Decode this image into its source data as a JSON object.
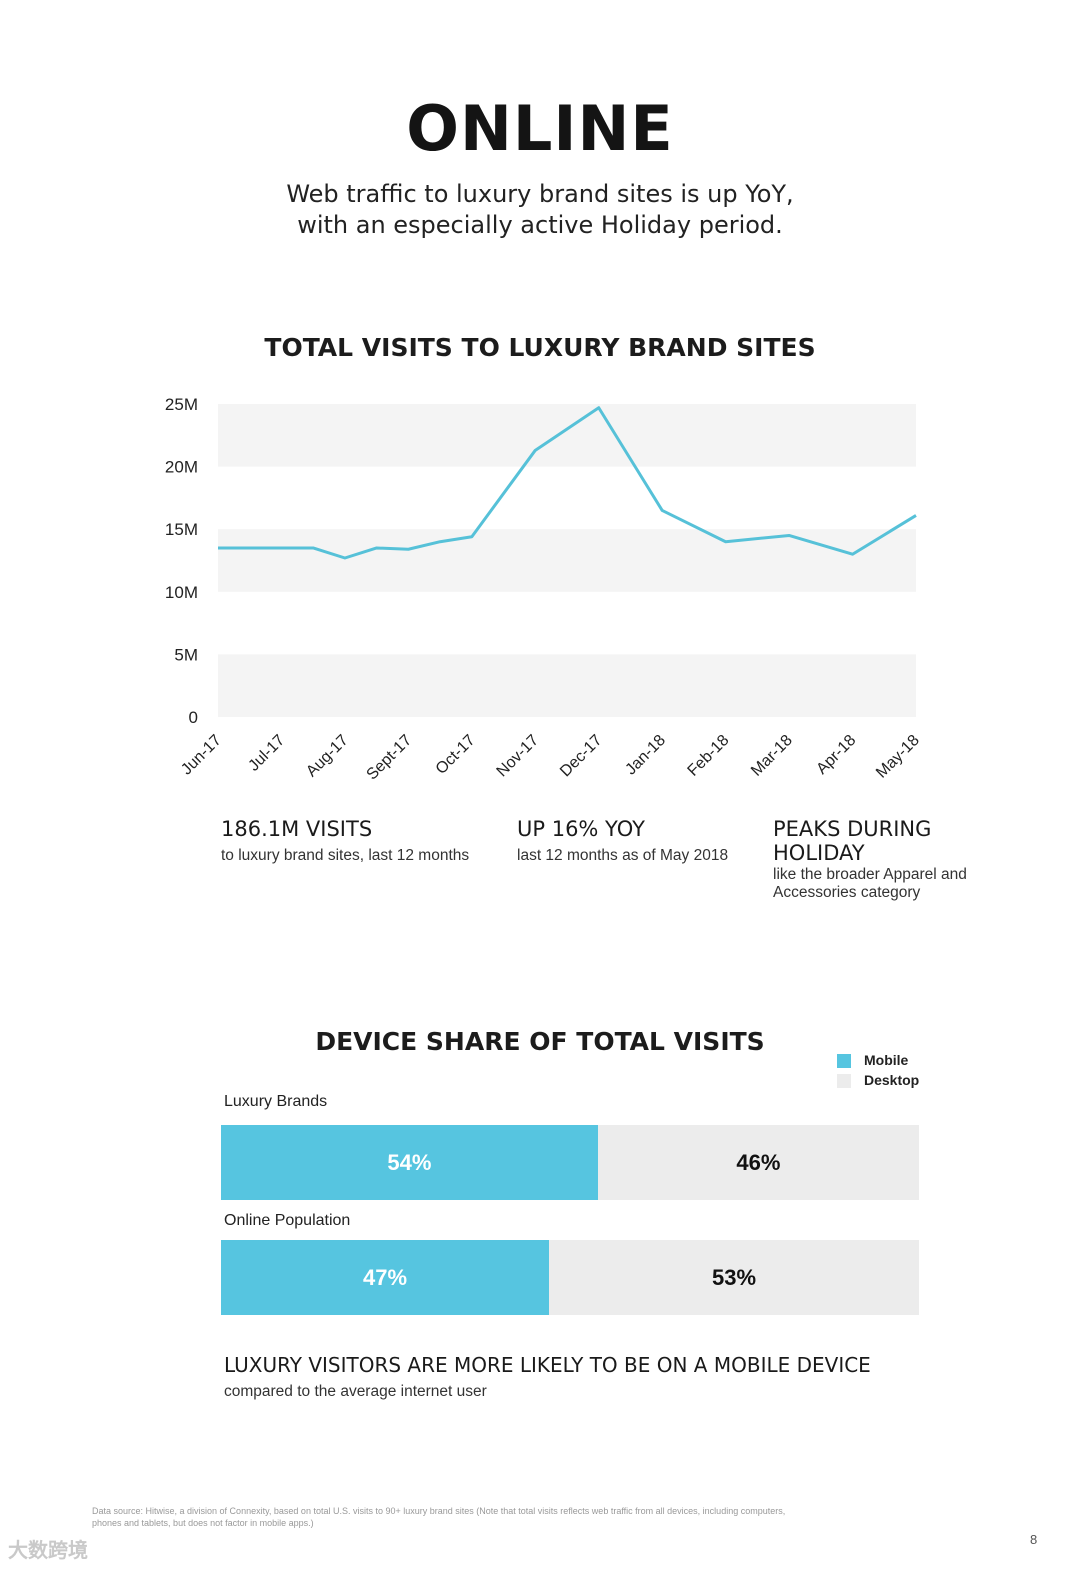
{
  "header": {
    "title": "ONLINE",
    "subtitle_line1": "Web traffic to luxury brand sites is up YoY,",
    "subtitle_line2": "with an especially active Holiday period."
  },
  "chart_data": [
    {
      "type": "line",
      "title": "TOTAL VISITS TO LUXURY BRAND SITES",
      "categories": [
        "Jun-17",
        "Jul-17",
        "Aug-17",
        "Sept-17",
        "Oct-17",
        "Nov-17",
        "Dec-17",
        "Jan-18",
        "Feb-18",
        "Mar-18",
        "Apr-18",
        "May-18"
      ],
      "series": [
        {
          "name": "Total Visits",
          "values": [
            13.5,
            13.5,
            13.5,
            12.7,
            13.5,
            13.4,
            14.0,
            14.4,
            21.3,
            24.7,
            16.5,
            14.0,
            14.5,
            13.0,
            16.1
          ],
          "x": [
            0,
            1,
            1.5,
            2,
            2.5,
            3,
            3.5,
            4,
            5,
            6,
            7,
            8,
            9,
            10,
            11
          ]
        }
      ],
      "y_ticks": [
        "0",
        "5M",
        "10M",
        "15M",
        "20M",
        "25M"
      ],
      "ylim": [
        0,
        25
      ],
      "ylabel": "",
      "xlabel": "",
      "line_color": "#56c1d8"
    },
    {
      "type": "bar",
      "orientation": "horizontal-stacked",
      "title": "DEVICE SHARE OF TOTAL VISITS",
      "categories": [
        "Luxury Brands",
        "Online Population"
      ],
      "series": [
        {
          "name": "Mobile",
          "values": [
            54,
            47
          ],
          "labels": [
            "54%",
            "47%"
          ],
          "color": "#56c5e0"
        },
        {
          "name": "Desktop",
          "values": [
            46,
            53
          ],
          "labels": [
            "46%",
            "53%"
          ],
          "color": "#ececec"
        }
      ],
      "unit": "%",
      "legend": "top-right"
    }
  ],
  "stats": [
    {
      "headline": "186.1M VISITS",
      "detail": "to luxury brand sites, last 12 months"
    },
    {
      "headline": "UP 16% YOY",
      "detail": "last 12 months as of May 2018"
    },
    {
      "headline_line1": "PEAKS DURING",
      "headline_line2": "HOLIDAY",
      "detail_line1": "like the broader Apparel and",
      "detail_line2": "Accessories category"
    }
  ],
  "conclusion": {
    "headline": "LUXURY VISITORS ARE MORE LIKELY TO BE ON A MOBILE DEVICE",
    "detail": "compared to the average internet user"
  },
  "footer": {
    "source_line1": "Data source: Hitwise, a division of Connexity, based on total U.S. visits to 90+ luxury brand sites (Note that total visits reflects web traffic from all devices, including computers,",
    "source_line2": "phones and tablets, but does not factor in mobile apps.)",
    "page_number": "8",
    "watermark": "大数跨境"
  }
}
